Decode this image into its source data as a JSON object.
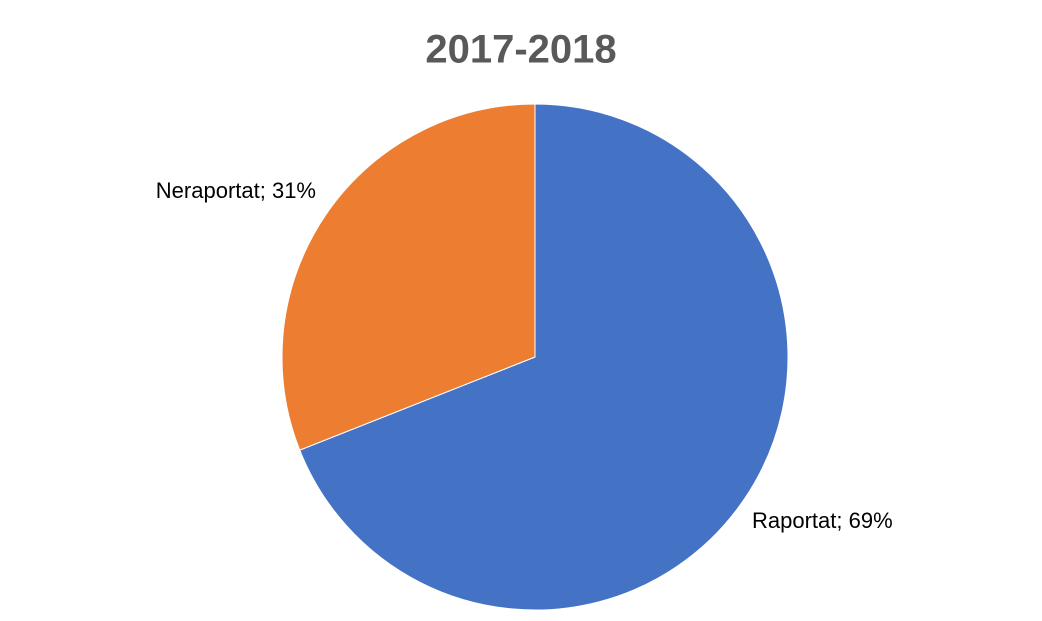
{
  "chart_data": {
    "type": "pie",
    "title": "2017-2018",
    "values": [
      69,
      31
    ],
    "value_labels": [
      "Raportat; 69%",
      "Neraportat; 31%"
    ],
    "colors": [
      "#4472c4",
      "#ed7d31"
    ]
  }
}
